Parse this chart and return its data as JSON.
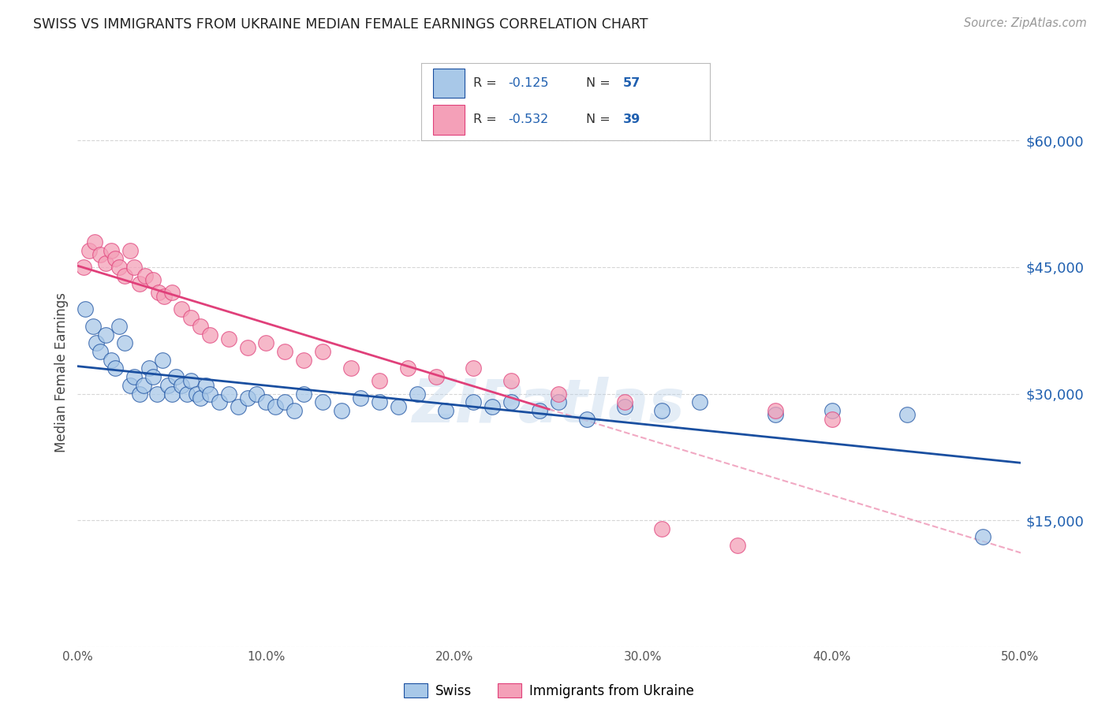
{
  "title": "SWISS VS IMMIGRANTS FROM UKRAINE MEDIAN FEMALE EARNINGS CORRELATION CHART",
  "source": "Source: ZipAtlas.com",
  "ylabel": "Median Female Earnings",
  "y_ticks": [
    0,
    15000,
    30000,
    45000,
    60000
  ],
  "y_tick_labels": [
    "",
    "$15,000",
    "$30,000",
    "$45,000",
    "$60,000"
  ],
  "xlim": [
    0.0,
    0.5
  ],
  "ylim": [
    0,
    65000
  ],
  "swiss_R": "-0.125",
  "swiss_N": "57",
  "ukraine_R": "-0.532",
  "ukraine_N": "39",
  "swiss_color": "#a8c8e8",
  "ukraine_color": "#f4a0b8",
  "swiss_line_color": "#1a4fa0",
  "ukraine_line_color": "#e0407a",
  "watermark": "ZIPatlas",
  "swiss_scatter_x": [
    0.004,
    0.008,
    0.01,
    0.012,
    0.015,
    0.018,
    0.02,
    0.022,
    0.025,
    0.028,
    0.03,
    0.033,
    0.035,
    0.038,
    0.04,
    0.042,
    0.045,
    0.048,
    0.05,
    0.052,
    0.055,
    0.058,
    0.06,
    0.063,
    0.065,
    0.068,
    0.07,
    0.075,
    0.08,
    0.085,
    0.09,
    0.095,
    0.1,
    0.105,
    0.11,
    0.115,
    0.12,
    0.13,
    0.14,
    0.15,
    0.16,
    0.17,
    0.18,
    0.195,
    0.21,
    0.22,
    0.23,
    0.245,
    0.255,
    0.27,
    0.29,
    0.31,
    0.33,
    0.37,
    0.4,
    0.44,
    0.48
  ],
  "swiss_scatter_y": [
    40000,
    38000,
    36000,
    35000,
    37000,
    34000,
    33000,
    38000,
    36000,
    31000,
    32000,
    30000,
    31000,
    33000,
    32000,
    30000,
    34000,
    31000,
    30000,
    32000,
    31000,
    30000,
    31500,
    30000,
    29500,
    31000,
    30000,
    29000,
    30000,
    28500,
    29500,
    30000,
    29000,
    28500,
    29000,
    28000,
    30000,
    29000,
    28000,
    29500,
    29000,
    28500,
    30000,
    28000,
    29000,
    28500,
    29000,
    28000,
    29000,
    27000,
    28500,
    28000,
    29000,
    27500,
    28000,
    27500,
    13000
  ],
  "ukraine_scatter_x": [
    0.003,
    0.006,
    0.009,
    0.012,
    0.015,
    0.018,
    0.02,
    0.022,
    0.025,
    0.028,
    0.03,
    0.033,
    0.036,
    0.04,
    0.043,
    0.046,
    0.05,
    0.055,
    0.06,
    0.065,
    0.07,
    0.08,
    0.09,
    0.1,
    0.11,
    0.12,
    0.13,
    0.145,
    0.16,
    0.175,
    0.19,
    0.21,
    0.23,
    0.255,
    0.29,
    0.31,
    0.35,
    0.37,
    0.4
  ],
  "ukraine_scatter_y": [
    45000,
    47000,
    48000,
    46500,
    45500,
    47000,
    46000,
    45000,
    44000,
    47000,
    45000,
    43000,
    44000,
    43500,
    42000,
    41500,
    42000,
    40000,
    39000,
    38000,
    37000,
    36500,
    35500,
    36000,
    35000,
    34000,
    35000,
    33000,
    31500,
    33000,
    32000,
    33000,
    31500,
    30000,
    29000,
    14000,
    12000,
    28000,
    27000
  ],
  "background_color": "#ffffff",
  "grid_color": "#cccccc"
}
